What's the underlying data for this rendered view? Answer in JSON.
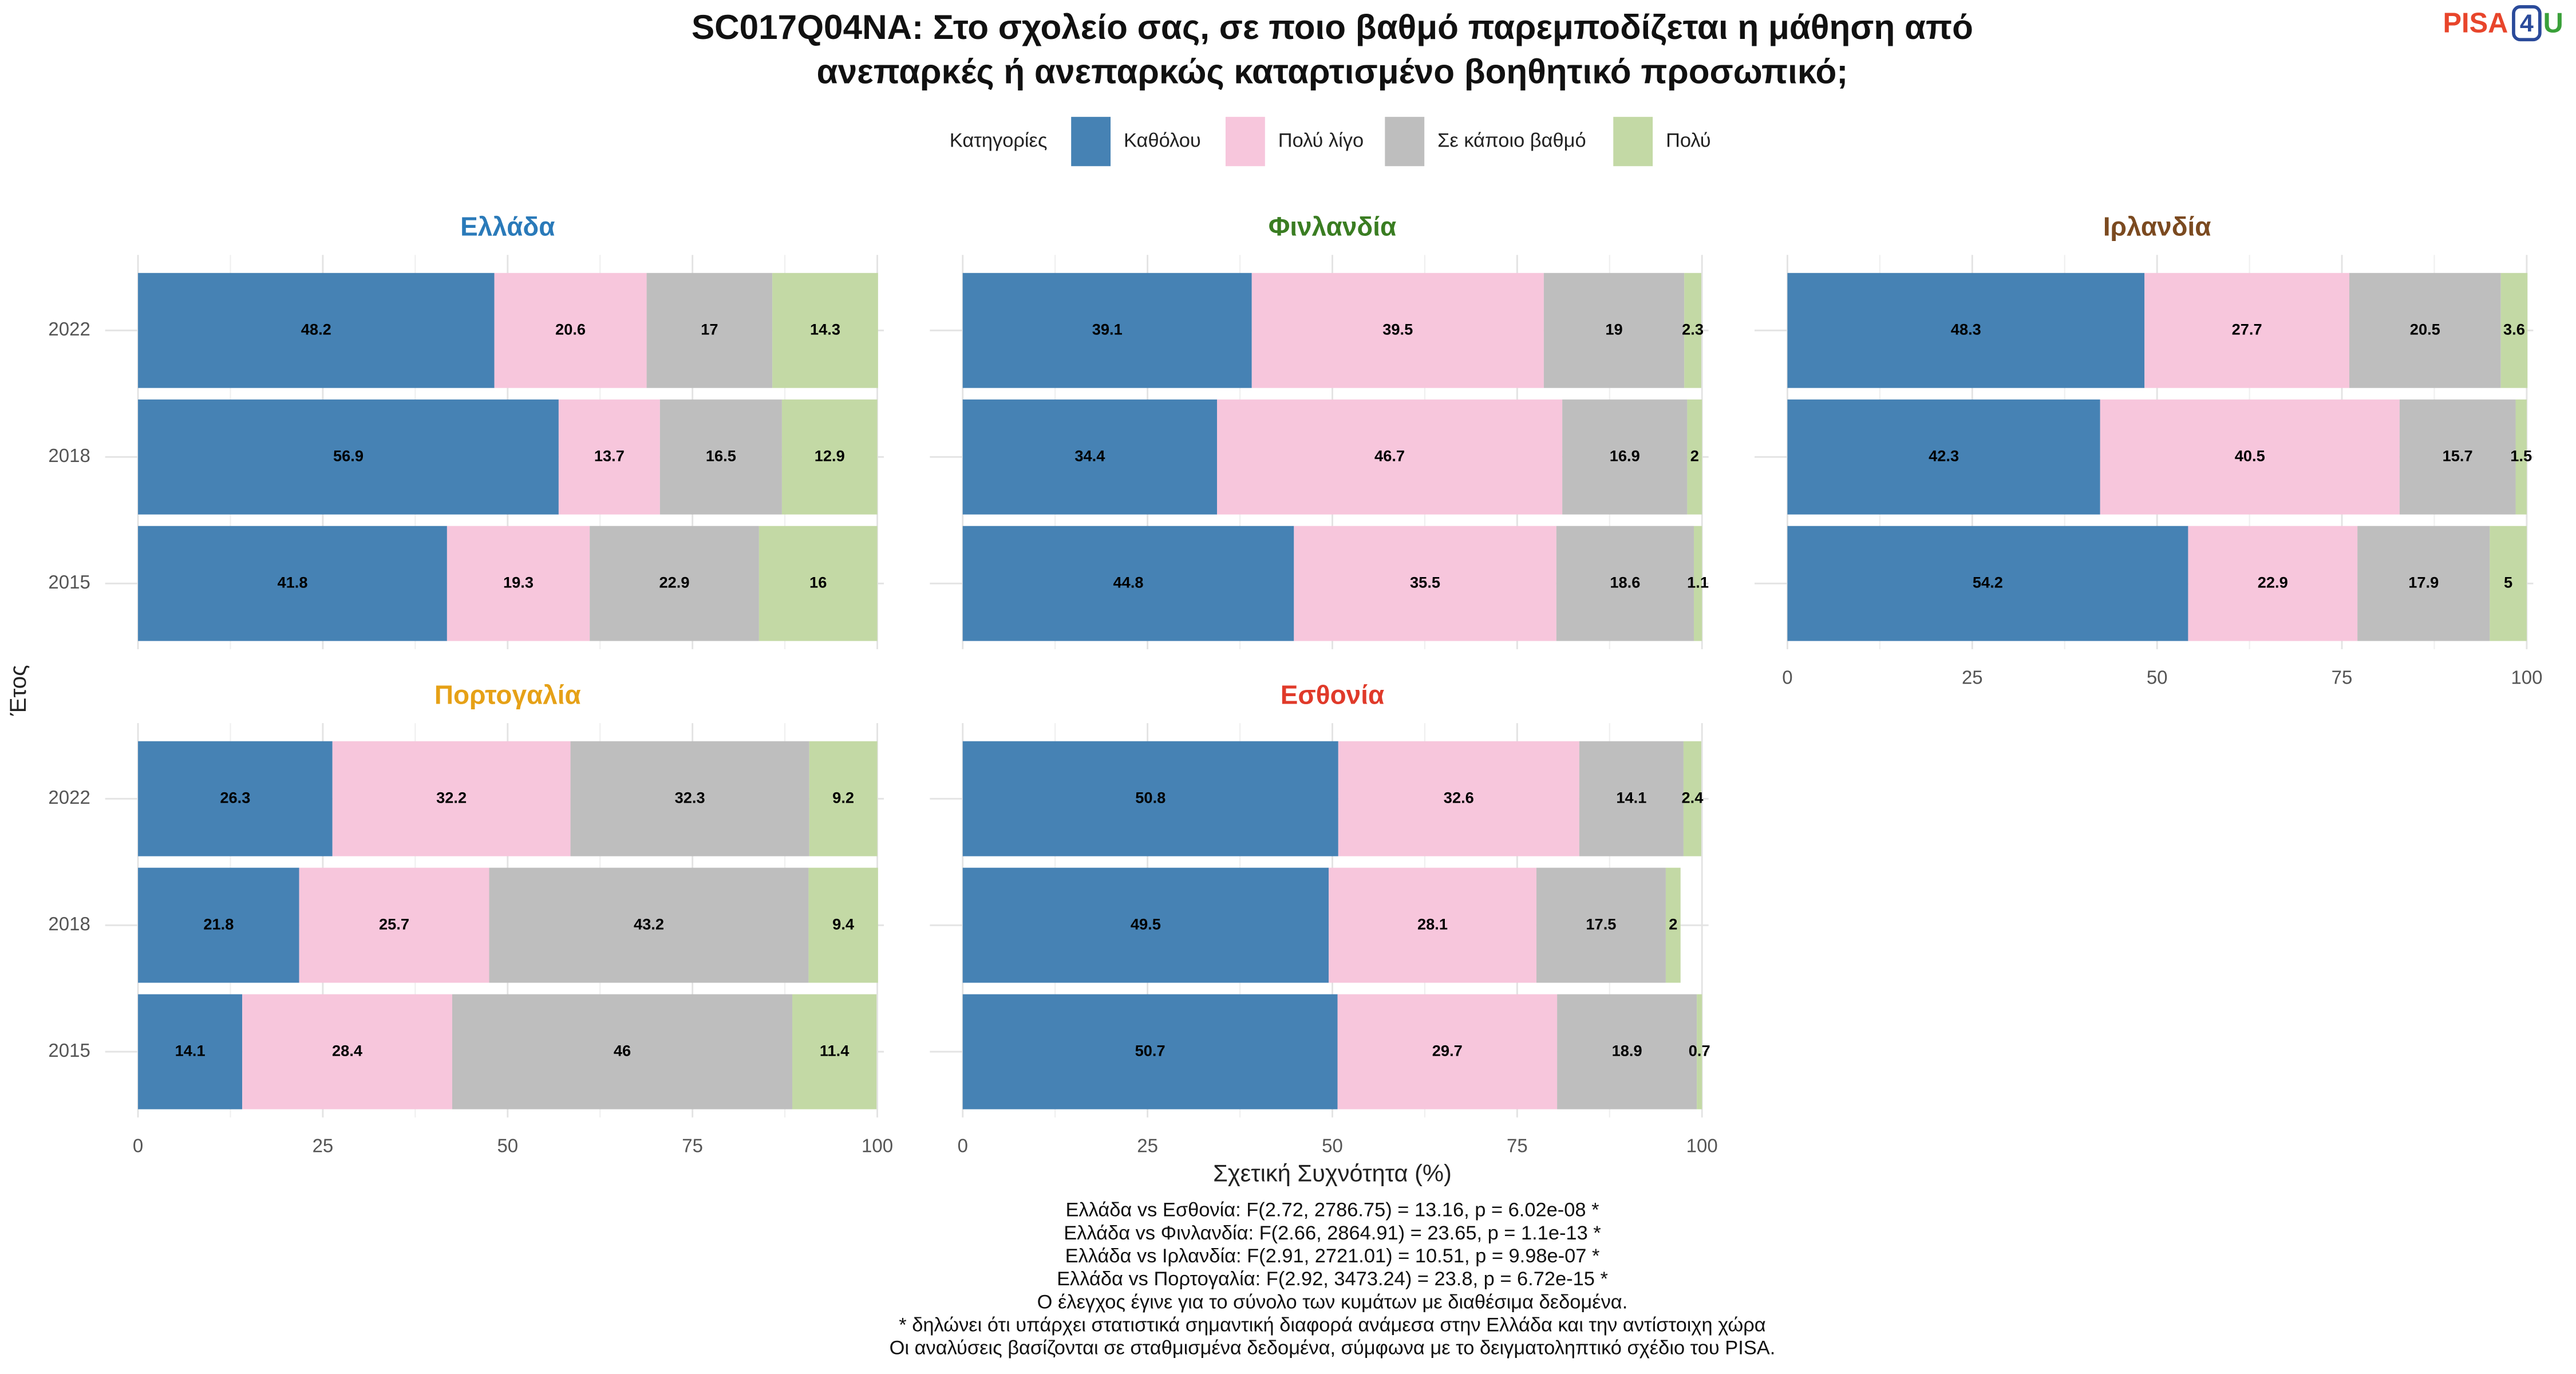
{
  "title": [
    "SC017Q04NA: Στο σχολείο σας, σε ποιο βαθμό παρεμποδίζεται η μάθηση από",
    "ανεπαρκές ή ανεπαρκώς καταρτισμένο βοηθητικό προσωπικό;"
  ],
  "legend_title": "Κατηγορίες",
  "y_label": "Έτος",
  "x_label": "Σχετική Συχνότητα (%)",
  "logo": [
    "PISA",
    "4",
    "U"
  ],
  "notes": [
    "Ελλάδα vs Εσθονία: F(2.72, 2786.75) = 13.16, p = 6.02e-08 *",
    "Ελλάδα vs Φινλανδία: F(2.66, 2864.91) = 23.65, p = 1.1e-13 *",
    "Ελλάδα vs Ιρλανδία: F(2.91, 2721.01) = 10.51, p = 9.98e-07 *",
    "Ελλάδα vs Πορτογαλία: F(2.92, 3473.24) = 23.8, p = 6.72e-15 *",
    "Ο έλεγχος έγινε για το σύνολο των κυμάτων με διαθέσιμα δεδομένα.",
    "* δηλώνει ότι υπάρχει στατιστικά σημαντική διαφορά ανάμεσα στην Ελλάδα και την αντίστοιχη χώρα",
    "Οι αναλύσεις βασίζονται σε σταθμισμένα δεδομένα, σύμφωνα με το δειγματοληπτικό σχέδιο του PISA."
  ],
  "chart_data": [
    {
      "type": "hbar_stacked",
      "title": "Ελλάδα",
      "title_color": "#2a7ab9",
      "categories": [
        "2015",
        "2018",
        "2022"
      ],
      "xlim": [
        0,
        100
      ],
      "xticks": [
        0,
        25,
        50,
        75,
        100
      ],
      "xtick_labels": false,
      "ytick_labels": true,
      "grid": true,
      "series": [
        {
          "name": "Καθόλου",
          "color": "#4682b4",
          "values": [
            41.8,
            56.9,
            48.2
          ]
        },
        {
          "name": "Πολύ λίγο",
          "color": "#f7c6dc",
          "values": [
            19.3,
            13.7,
            20.6
          ]
        },
        {
          "name": "Σε κάποιο βαθμό",
          "color": "#bebebe",
          "values": [
            22.9,
            16.5,
            17
          ]
        },
        {
          "name": "Πολύ",
          "color": "#c3d9a5",
          "values": [
            16,
            12.9,
            14.3
          ]
        }
      ]
    },
    {
      "type": "hbar_stacked",
      "title": "Φινλανδία",
      "title_color": "#3a7d22",
      "categories": [
        "2015",
        "2018",
        "2022"
      ],
      "xlim": [
        0,
        100
      ],
      "xticks": [
        0,
        25,
        50,
        75,
        100
      ],
      "xtick_labels": false,
      "ytick_labels": false,
      "grid": true,
      "series": [
        {
          "name": "Καθόλου",
          "color": "#4682b4",
          "values": [
            44.8,
            34.4,
            39.1
          ]
        },
        {
          "name": "Πολύ λίγο",
          "color": "#f7c6dc",
          "values": [
            35.5,
            46.7,
            39.5
          ]
        },
        {
          "name": "Σε κάποιο βαθμό",
          "color": "#bebebe",
          "values": [
            18.6,
            16.9,
            19
          ]
        },
        {
          "name": "Πολύ",
          "color": "#c3d9a5",
          "values": [
            1.1,
            2,
            2.3
          ]
        }
      ]
    },
    {
      "type": "hbar_stacked",
      "title": "Ιρλανδία",
      "title_color": "#7b4a20",
      "categories": [
        "2015",
        "2018",
        "2022"
      ],
      "xlim": [
        0,
        100
      ],
      "xticks": [
        0,
        25,
        50,
        75,
        100
      ],
      "xtick_labels": true,
      "ytick_labels": false,
      "grid": true,
      "series": [
        {
          "name": "Καθόλου",
          "color": "#4682b4",
          "values": [
            54.2,
            42.3,
            48.3
          ]
        },
        {
          "name": "Πολύ λίγο",
          "color": "#f7c6dc",
          "values": [
            22.9,
            40.5,
            27.7
          ]
        },
        {
          "name": "Σε κάποιο βαθμό",
          "color": "#bebebe",
          "values": [
            17.9,
            15.7,
            20.5
          ]
        },
        {
          "name": "Πολύ",
          "color": "#c3d9a5",
          "values": [
            5,
            1.5,
            3.6
          ]
        }
      ]
    },
    {
      "type": "hbar_stacked",
      "title": "Πορτογαλία",
      "title_color": "#e6a117",
      "categories": [
        "2015",
        "2018",
        "2022"
      ],
      "xlim": [
        0,
        100
      ],
      "xticks": [
        0,
        25,
        50,
        75,
        100
      ],
      "xtick_labels": true,
      "ytick_labels": true,
      "grid": true,
      "series": [
        {
          "name": "Καθόλου",
          "color": "#4682b4",
          "values": [
            14.1,
            21.8,
            26.3
          ]
        },
        {
          "name": "Πολύ λίγο",
          "color": "#f7c6dc",
          "values": [
            28.4,
            25.7,
            32.2
          ]
        },
        {
          "name": "Σε κάποιο βαθμό",
          "color": "#bebebe",
          "values": [
            46,
            43.2,
            32.3
          ]
        },
        {
          "name": "Πολύ",
          "color": "#c3d9a5",
          "values": [
            11.4,
            9.4,
            9.2
          ]
        }
      ]
    },
    {
      "type": "hbar_stacked",
      "title": "Εσθονία",
      "title_color": "#e03a2a",
      "categories": [
        "2015",
        "2018",
        "2022"
      ],
      "xlim": [
        0,
        100
      ],
      "xticks": [
        0,
        25,
        50,
        75,
        100
      ],
      "xtick_labels": true,
      "ytick_labels": false,
      "grid": true,
      "series": [
        {
          "name": "Καθόλου",
          "color": "#4682b4",
          "values": [
            50.7,
            49.5,
            50.8
          ]
        },
        {
          "name": "Πολύ λίγο",
          "color": "#f7c6dc",
          "values": [
            29.7,
            28.1,
            32.6
          ]
        },
        {
          "name": "Σε κάποιο βαθμό",
          "color": "#bebebe",
          "values": [
            18.9,
            17.5,
            14.1
          ]
        },
        {
          "name": "Πολύ",
          "color": "#c3d9a5",
          "values": [
            0.7,
            2,
            2.4
          ]
        }
      ]
    }
  ]
}
